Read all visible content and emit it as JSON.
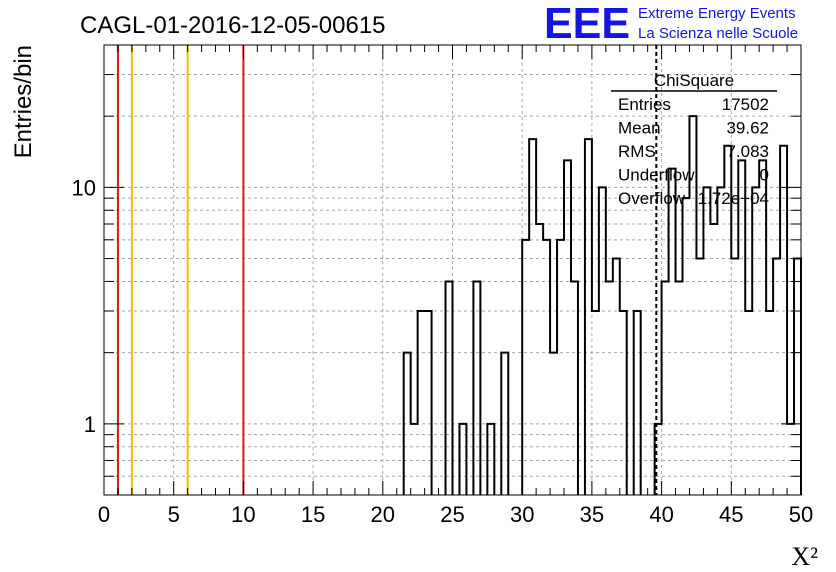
{
  "header": {
    "title": "CAGL-01-2016-12-05-00615",
    "logo_text": "EEE",
    "brand_line1": "Extreme Energy Events",
    "brand_line2": "La Scienza nelle Scuole",
    "brand_color": "#1414e6"
  },
  "stats": {
    "title": "ChiSquare",
    "rows": [
      {
        "label": "Entries",
        "value": "17502"
      },
      {
        "label": "Mean",
        "value": "39.62"
      },
      {
        "label": "RMS",
        "value": "7.083"
      },
      {
        "label": "Underflow",
        "value": "0"
      },
      {
        "label": "Overflow",
        "value": "1.72e+04"
      }
    ]
  },
  "chart_data": {
    "type": "histogram",
    "xlabel": "X²",
    "ylabel": "Entries/bin",
    "xlim": [
      0,
      50
    ],
    "ylim": [
      0.5,
      40
    ],
    "yscale": "log",
    "grid": true,
    "bin_width": 0.5,
    "x_ticks": [
      0,
      5,
      10,
      15,
      20,
      25,
      30,
      35,
      40,
      45,
      50
    ],
    "y_ticks": [
      {
        "value": 1,
        "label": "1"
      },
      {
        "value": 10,
        "label": "10"
      }
    ],
    "bins": [
      [
        21.5,
        2
      ],
      [
        22.0,
        1
      ],
      [
        22.5,
        3
      ],
      [
        23.0,
        3
      ],
      [
        24.5,
        4
      ],
      [
        25.5,
        1
      ],
      [
        26.5,
        4
      ],
      [
        27.5,
        1
      ],
      [
        28.5,
        2
      ],
      [
        30.0,
        6
      ],
      [
        30.5,
        16
      ],
      [
        31.0,
        7
      ],
      [
        31.5,
        6
      ],
      [
        32.0,
        2
      ],
      [
        32.5,
        6
      ],
      [
        33.0,
        13
      ],
      [
        33.5,
        4
      ],
      [
        34.5,
        16
      ],
      [
        35.0,
        3
      ],
      [
        35.5,
        10
      ],
      [
        36.0,
        4
      ],
      [
        36.5,
        5
      ],
      [
        37.0,
        3
      ],
      [
        38.0,
        3
      ],
      [
        39.5,
        1
      ],
      [
        40.0,
        4
      ],
      [
        40.5,
        12
      ],
      [
        41.0,
        4
      ],
      [
        41.5,
        9
      ],
      [
        42.0,
        20
      ],
      [
        42.5,
        5
      ],
      [
        43.0,
        10
      ],
      [
        43.5,
        7
      ],
      [
        44.0,
        10
      ],
      [
        44.5,
        15
      ],
      [
        45.0,
        5
      ],
      [
        45.5,
        13
      ],
      [
        46.0,
        3
      ],
      [
        46.5,
        10
      ],
      [
        47.0,
        13
      ],
      [
        47.5,
        3
      ],
      [
        48.0,
        5
      ],
      [
        48.5,
        15
      ],
      [
        49.0,
        1
      ],
      [
        49.5,
        5
      ]
    ],
    "vertical_lines": [
      {
        "x": 1,
        "color": "#e01515",
        "style": "solid"
      },
      {
        "x": 2,
        "color": "#f0c000",
        "style": "solid"
      },
      {
        "x": 6,
        "color": "#f0c000",
        "style": "solid"
      },
      {
        "x": 10,
        "color": "#e01515",
        "style": "solid"
      },
      {
        "x": 39.62,
        "color": "#000000",
        "style": "dashed"
      }
    ]
  }
}
